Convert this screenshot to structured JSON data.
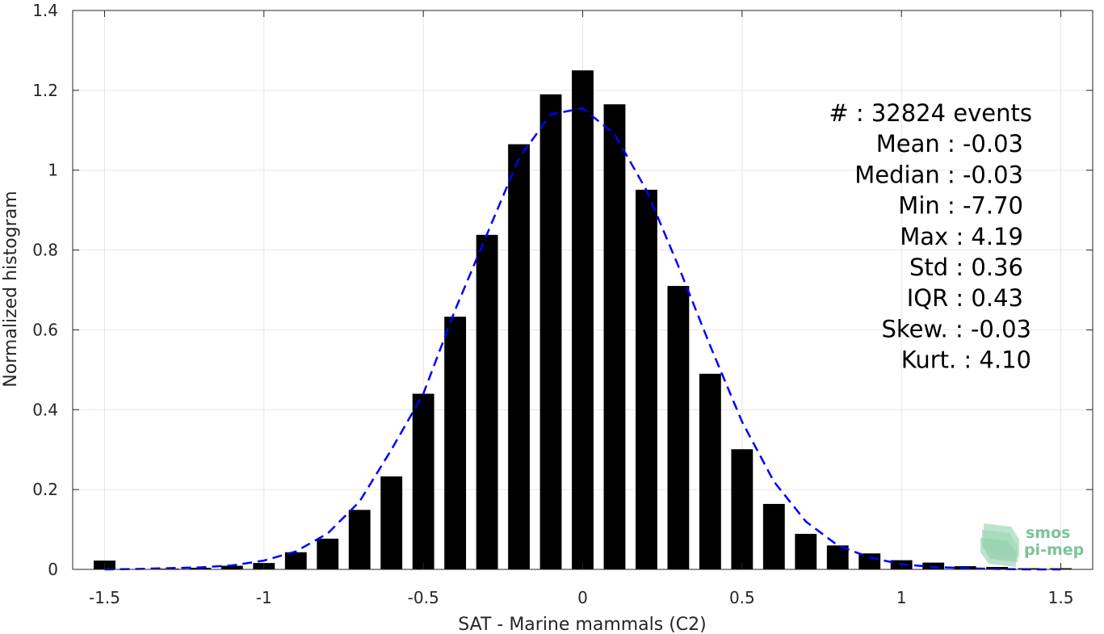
{
  "chart_data": {
    "type": "bar",
    "xlabel": "SAT - Marine mammals (C2)",
    "ylabel": "Normalized histogram",
    "xlim": [
      -1.6,
      1.6
    ],
    "ylim": [
      0,
      1.4
    ],
    "xticks": [
      -1.5,
      -1,
      -0.5,
      0,
      0.5,
      1,
      1.5
    ],
    "xtick_labels": [
      "-1.5",
      "-1",
      "-0.5",
      "0",
      "0.5",
      "1",
      "1.5"
    ],
    "yticks": [
      0,
      0.2,
      0.4,
      0.6,
      0.8,
      1,
      1.2,
      1.4
    ],
    "ytick_labels": [
      "0",
      "0.2",
      "0.4",
      "0.6",
      "0.8",
      "1",
      "1.2",
      "1.4"
    ],
    "grid": true,
    "bin_width": 0.1,
    "bins": [
      {
        "x": -1.5,
        "y": 0.022
      },
      {
        "x": -1.4,
        "y": 0.001
      },
      {
        "x": -1.3,
        "y": 0.002
      },
      {
        "x": -1.2,
        "y": 0.004
      },
      {
        "x": -1.1,
        "y": 0.009
      },
      {
        "x": -1.0,
        "y": 0.016
      },
      {
        "x": -0.9,
        "y": 0.043
      },
      {
        "x": -0.8,
        "y": 0.077
      },
      {
        "x": -0.7,
        "y": 0.149
      },
      {
        "x": -0.6,
        "y": 0.233
      },
      {
        "x": -0.5,
        "y": 0.44
      },
      {
        "x": -0.4,
        "y": 0.633
      },
      {
        "x": -0.3,
        "y": 0.838
      },
      {
        "x": -0.2,
        "y": 1.065
      },
      {
        "x": -0.1,
        "y": 1.19
      },
      {
        "x": 0.0,
        "y": 1.25
      },
      {
        "x": 0.1,
        "y": 1.165
      },
      {
        "x": 0.2,
        "y": 0.951
      },
      {
        "x": 0.3,
        "y": 0.71
      },
      {
        "x": 0.4,
        "y": 0.49
      },
      {
        "x": 0.5,
        "y": 0.301
      },
      {
        "x": 0.6,
        "y": 0.164
      },
      {
        "x": 0.7,
        "y": 0.089
      },
      {
        "x": 0.8,
        "y": 0.06
      },
      {
        "x": 0.9,
        "y": 0.04
      },
      {
        "x": 1.0,
        "y": 0.023
      },
      {
        "x": 1.1,
        "y": 0.017
      },
      {
        "x": 1.2,
        "y": 0.008
      },
      {
        "x": 1.3,
        "y": 0.006
      },
      {
        "x": 1.4,
        "y": 0.003
      },
      {
        "x": 1.5,
        "y": 0.003
      }
    ],
    "bar_color": "#000000",
    "fit_curve": {
      "style": "dashed",
      "color": "#0000ff",
      "points": [
        [
          -1.5,
          0.0
        ],
        [
          -1.4,
          0.001
        ],
        [
          -1.3,
          0.003
        ],
        [
          -1.2,
          0.005
        ],
        [
          -1.1,
          0.01
        ],
        [
          -1.0,
          0.022
        ],
        [
          -0.9,
          0.045
        ],
        [
          -0.8,
          0.09
        ],
        [
          -0.7,
          0.17
        ],
        [
          -0.6,
          0.3
        ],
        [
          -0.5,
          0.44
        ],
        [
          -0.4,
          0.65
        ],
        [
          -0.3,
          0.84
        ],
        [
          -0.2,
          1.03
        ],
        [
          -0.1,
          1.14
        ],
        [
          0.0,
          1.155
        ],
        [
          0.1,
          1.09
        ],
        [
          0.2,
          0.95
        ],
        [
          0.3,
          0.76
        ],
        [
          0.4,
          0.56
        ],
        [
          0.5,
          0.37
        ],
        [
          0.6,
          0.22
        ],
        [
          0.7,
          0.12
        ],
        [
          0.8,
          0.06
        ],
        [
          0.9,
          0.03
        ],
        [
          1.0,
          0.013
        ],
        [
          1.1,
          0.006
        ],
        [
          1.2,
          0.003
        ],
        [
          1.3,
          0.001
        ],
        [
          1.4,
          0.0
        ],
        [
          1.5,
          0.0
        ]
      ]
    },
    "stats_box": [
      "#  : 32824 events",
      "Mean : -0.03",
      "Median : -0.03",
      "Min : -7.70",
      "Max : 4.19",
      "Std : 0.36",
      "IQR : 0.43",
      "Skew. : -0.03",
      "Kurt. : 4.10"
    ]
  },
  "logo": {
    "line1": "smos",
    "line2": "pi-mep",
    "color": "#7cc39a"
  }
}
